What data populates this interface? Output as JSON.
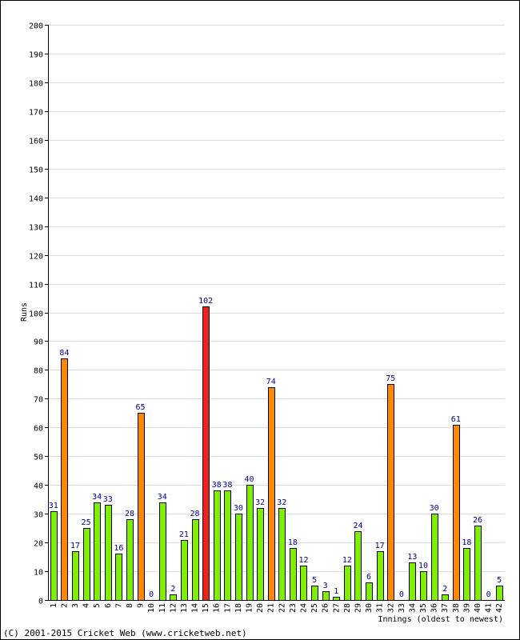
{
  "chart_data": {
    "type": "bar",
    "title": "",
    "xlabel": "Innings (oldest to newest)",
    "ylabel": "Runs",
    "ylim": [
      0,
      200
    ],
    "ytick_step": 10,
    "grid": true,
    "categories": [
      "1",
      "2",
      "3",
      "4",
      "5",
      "6",
      "7",
      "8",
      "9",
      "10",
      "11",
      "12",
      "13",
      "14",
      "15",
      "16",
      "17",
      "18",
      "19",
      "20",
      "21",
      "22",
      "23",
      "24",
      "25",
      "26",
      "27",
      "28",
      "29",
      "30",
      "31",
      "32",
      "33",
      "34",
      "35",
      "36",
      "37",
      "38",
      "39",
      "40",
      "41",
      "42"
    ],
    "values": [
      31,
      84,
      17,
      25,
      34,
      33,
      16,
      28,
      65,
      0,
      34,
      2,
      21,
      28,
      102,
      38,
      38,
      30,
      40,
      32,
      74,
      32,
      18,
      12,
      5,
      3,
      1,
      12,
      24,
      6,
      17,
      75,
      0,
      13,
      10,
      30,
      2,
      61,
      18,
      26,
      0,
      5
    ],
    "colors": {
      "default": "#80ee00",
      "fifty": "#ff8800",
      "hundred": "#ee2222",
      "value_label": "#000080",
      "grid": "#dddddd",
      "frame": "#000000"
    }
  },
  "footer": {
    "copyright": "(C) 2001-2015 Cricket Web (www.cricketweb.net)"
  }
}
